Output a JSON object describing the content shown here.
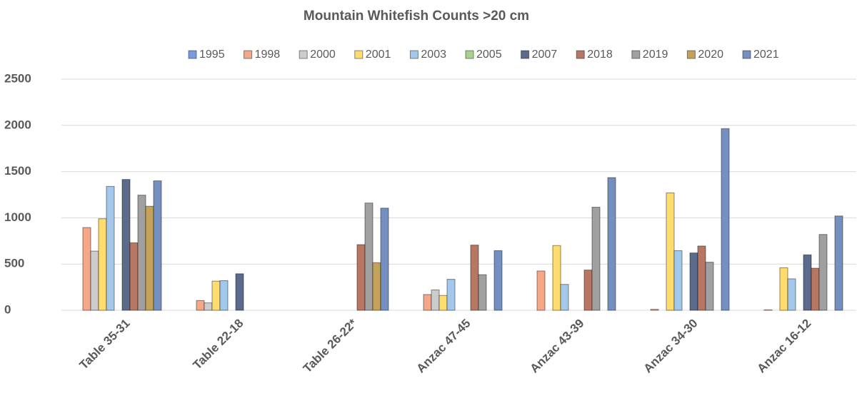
{
  "chart_data": {
    "type": "bar",
    "title": "Mountain Whitefish Counts >20 cm",
    "categories": [
      "Table 35-31",
      "Table 22-18",
      "Table 26-22*",
      "Anzac 47-45",
      "Anzac 43-39",
      "Anzac 34-30",
      "Anzac 16-12"
    ],
    "series": [
      {
        "name": "1995",
        "color": "#7b9be0",
        "values": [
          null,
          null,
          null,
          null,
          null,
          null,
          null
        ]
      },
      {
        "name": "1998",
        "color": "#f4a887",
        "values": [
          895,
          105,
          null,
          170,
          425,
          10,
          5
        ]
      },
      {
        "name": "2000",
        "color": "#cccccc",
        "values": [
          640,
          80,
          null,
          220,
          null,
          null,
          null
        ]
      },
      {
        "name": "2001",
        "color": "#ffdc6e",
        "values": [
          990,
          315,
          null,
          160,
          700,
          1270,
          460
        ]
      },
      {
        "name": "2003",
        "color": "#a4c8ec",
        "values": [
          1340,
          320,
          null,
          335,
          280,
          645,
          340
        ]
      },
      {
        "name": "2005",
        "color": "#a9d18e",
        "values": [
          null,
          null,
          null,
          null,
          null,
          null,
          null
        ]
      },
      {
        "name": "2007",
        "color": "#5a6b8c",
        "values": [
          1415,
          395,
          null,
          null,
          null,
          620,
          600
        ]
      },
      {
        "name": "2018",
        "color": "#b77762",
        "values": [
          730,
          null,
          710,
          705,
          435,
          695,
          455
        ]
      },
      {
        "name": "2019",
        "color": "#a0a0a0",
        "values": [
          1245,
          null,
          1160,
          385,
          1115,
          520,
          820
        ]
      },
      {
        "name": "2020",
        "color": "#c4a25a",
        "values": [
          1125,
          null,
          515,
          null,
          null,
          null,
          null
        ]
      },
      {
        "name": "2021",
        "color": "#7590c0",
        "values": [
          1400,
          null,
          1105,
          645,
          1435,
          1965,
          1020
        ]
      }
    ],
    "ylim": [
      0,
      2500
    ],
    "yticks": [
      0,
      500,
      1000,
      1500,
      2000,
      2500
    ],
    "grid": true,
    "legend": "top"
  }
}
